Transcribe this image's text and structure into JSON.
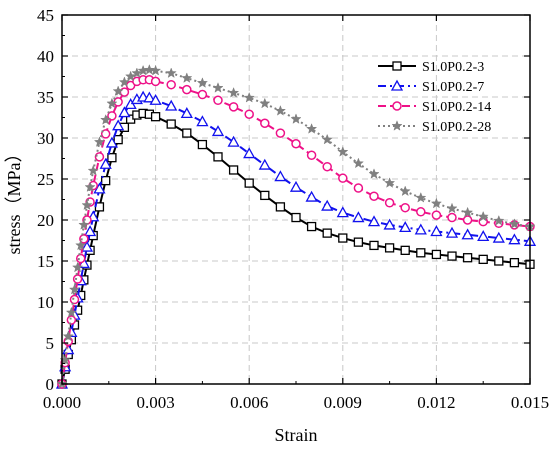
{
  "chart_data": {
    "type": "line",
    "xlabel": "Strain",
    "ylabel": "stress（MPa）",
    "xlim": [
      0,
      0.015
    ],
    "ylim": [
      0,
      45
    ],
    "xticks": [
      0,
      0.003,
      0.006,
      0.009,
      0.012,
      0.015
    ],
    "xtick_labels": [
      "0.000",
      "0.003",
      "0.006",
      "0.009",
      "0.012",
      "0.015"
    ],
    "yticks": [
      0,
      5,
      10,
      15,
      20,
      25,
      30,
      35,
      40,
      45
    ],
    "ytick_labels": [
      "0",
      "5",
      "10",
      "15",
      "20",
      "25",
      "30",
      "35",
      "40",
      "45"
    ],
    "grid": true,
    "legend_position": "top-right",
    "series": [
      {
        "name": "S1.0P0.2-3",
        "color": "#000000",
        "line_style": "solid",
        "marker": "square",
        "x": [
          0,
          0.0001,
          0.0002,
          0.0003,
          0.0004,
          0.0005,
          0.0006,
          0.0007,
          0.0008,
          0.0009,
          0.001,
          0.0012,
          0.0014,
          0.0016,
          0.0018,
          0.002,
          0.0022,
          0.0024,
          0.0026,
          0.0028,
          0.003,
          0.0035,
          0.004,
          0.0045,
          0.005,
          0.0055,
          0.006,
          0.0065,
          0.007,
          0.0075,
          0.008,
          0.0085,
          0.009,
          0.0095,
          0.01,
          0.0105,
          0.011,
          0.0115,
          0.012,
          0.0125,
          0.013,
          0.0135,
          0.014,
          0.0145,
          0.015
        ],
        "y": [
          0,
          1.8,
          3.6,
          5.4,
          7.2,
          9.0,
          10.8,
          12.7,
          14.5,
          16.3,
          18.1,
          21.6,
          24.8,
          27.6,
          29.8,
          31.3,
          32.3,
          32.8,
          33.0,
          32.9,
          32.6,
          31.7,
          30.6,
          29.2,
          27.7,
          26.1,
          24.5,
          23.0,
          21.6,
          20.3,
          19.2,
          18.4,
          17.8,
          17.3,
          16.9,
          16.6,
          16.3,
          16.0,
          15.8,
          15.6,
          15.4,
          15.2,
          15.0,
          14.8,
          14.6
        ]
      },
      {
        "name": "S1.0P0.2-7",
        "color": "#1111ee",
        "line_style": "dashdot",
        "marker": "triangle",
        "x": [
          0,
          0.0001,
          0.0002,
          0.0003,
          0.0004,
          0.0005,
          0.0006,
          0.0007,
          0.0008,
          0.0009,
          0.001,
          0.0012,
          0.0014,
          0.0016,
          0.0018,
          0.002,
          0.0022,
          0.0024,
          0.0026,
          0.0028,
          0.003,
          0.0035,
          0.004,
          0.0045,
          0.005,
          0.0055,
          0.006,
          0.0065,
          0.007,
          0.0075,
          0.008,
          0.0085,
          0.009,
          0.0095,
          0.01,
          0.0105,
          0.011,
          0.0115,
          0.012,
          0.0125,
          0.013,
          0.0135,
          0.014,
          0.0145,
          0.015
        ],
        "y": [
          0,
          2.1,
          4.2,
          6.3,
          8.4,
          10.5,
          12.6,
          14.7,
          16.7,
          18.6,
          20.4,
          23.8,
          26.8,
          29.4,
          31.5,
          33.1,
          34.1,
          34.7,
          35.0,
          34.9,
          34.6,
          33.9,
          33.0,
          32.0,
          30.8,
          29.5,
          28.1,
          26.7,
          25.3,
          24.0,
          22.8,
          21.7,
          20.9,
          20.3,
          19.8,
          19.4,
          19.1,
          18.8,
          18.6,
          18.4,
          18.2,
          18.0,
          17.8,
          17.6,
          17.4
        ]
      },
      {
        "name": "S1.0P0.2-14",
        "color": "#ee1188",
        "line_style": "dashed",
        "marker": "circle",
        "x": [
          0,
          0.0001,
          0.0002,
          0.0003,
          0.0004,
          0.0005,
          0.0006,
          0.0007,
          0.0008,
          0.0009,
          0.001,
          0.0012,
          0.0014,
          0.0016,
          0.0018,
          0.002,
          0.0022,
          0.0024,
          0.0026,
          0.0028,
          0.003,
          0.0035,
          0.004,
          0.0045,
          0.005,
          0.0055,
          0.006,
          0.0065,
          0.007,
          0.0075,
          0.008,
          0.0085,
          0.009,
          0.0095,
          0.01,
          0.0105,
          0.011,
          0.0115,
          0.012,
          0.0125,
          0.013,
          0.0135,
          0.014,
          0.0145,
          0.015
        ],
        "y": [
          0,
          2.6,
          5.2,
          7.8,
          10.3,
          12.8,
          15.3,
          17.7,
          20.0,
          22.2,
          24.2,
          27.7,
          30.5,
          32.7,
          34.4,
          35.6,
          36.4,
          36.9,
          37.1,
          37.1,
          36.9,
          36.5,
          35.9,
          35.3,
          34.6,
          33.8,
          32.9,
          31.8,
          30.6,
          29.3,
          27.9,
          26.5,
          25.1,
          23.9,
          22.9,
          22.1,
          21.5,
          21.0,
          20.6,
          20.3,
          20.0,
          19.8,
          19.6,
          19.4,
          19.2
        ]
      },
      {
        "name": "S1.0P0.2-28",
        "color": "#808080",
        "line_style": "dotted",
        "marker": "star",
        "x": [
          0,
          0.0001,
          0.0002,
          0.0003,
          0.0004,
          0.0005,
          0.0006,
          0.0007,
          0.0008,
          0.0009,
          0.001,
          0.0012,
          0.0014,
          0.0016,
          0.0018,
          0.002,
          0.0022,
          0.0024,
          0.0026,
          0.0028,
          0.003,
          0.0035,
          0.004,
          0.0045,
          0.005,
          0.0055,
          0.006,
          0.0065,
          0.007,
          0.0075,
          0.008,
          0.0085,
          0.009,
          0.0095,
          0.01,
          0.0105,
          0.011,
          0.0115,
          0.012,
          0.0125,
          0.013,
          0.0135,
          0.014,
          0.0145,
          0.015
        ],
        "y": [
          0,
          2.9,
          5.8,
          8.7,
          11.5,
          14.2,
          16.9,
          19.4,
          21.8,
          24.0,
          26.0,
          29.5,
          32.2,
          34.2,
          35.7,
          36.8,
          37.5,
          37.9,
          38.2,
          38.3,
          38.2,
          37.9,
          37.3,
          36.7,
          36.1,
          35.5,
          34.9,
          34.2,
          33.3,
          32.3,
          31.1,
          29.8,
          28.3,
          26.9,
          25.6,
          24.5,
          23.5,
          22.7,
          22.0,
          21.4,
          20.9,
          20.4,
          19.9,
          19.5,
          19.2
        ]
      }
    ]
  }
}
